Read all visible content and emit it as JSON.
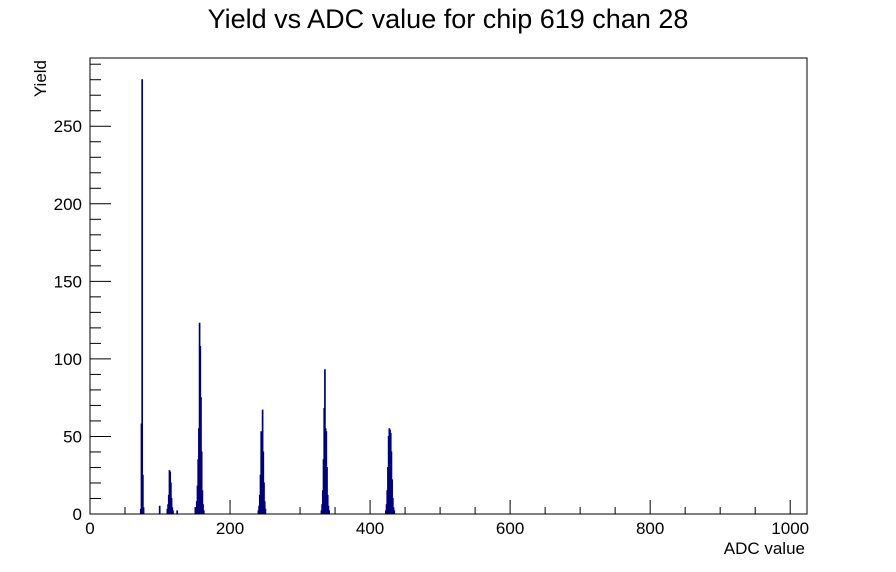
{
  "chart_data": {
    "type": "bar",
    "title": "Yield vs ADC value for chip 619 chan 28",
    "xlabel": "ADC value",
    "ylabel": "Yield",
    "xlim": [
      0,
      1024
    ],
    "ylim": [
      0,
      294
    ],
    "x_major_ticks": [
      0,
      200,
      400,
      600,
      800,
      1000
    ],
    "y_major_ticks": [
      0,
      50,
      100,
      150,
      200,
      250
    ],
    "grid": false,
    "legend": "none",
    "line_color": "#00007f",
    "bins": [
      {
        "x": 72,
        "y": 3
      },
      {
        "x": 73,
        "y": 58
      },
      {
        "x": 74,
        "y": 280
      },
      {
        "x": 75,
        "y": 25
      },
      {
        "x": 76,
        "y": 4
      },
      {
        "x": 99,
        "y": 5
      },
      {
        "x": 110,
        "y": 3
      },
      {
        "x": 111,
        "y": 6
      },
      {
        "x": 112,
        "y": 12
      },
      {
        "x": 113,
        "y": 28
      },
      {
        "x": 114,
        "y": 27
      },
      {
        "x": 115,
        "y": 20
      },
      {
        "x": 116,
        "y": 10
      },
      {
        "x": 117,
        "y": 4
      },
      {
        "x": 118,
        "y": 2
      },
      {
        "x": 124,
        "y": 2
      },
      {
        "x": 150,
        "y": 2
      },
      {
        "x": 151,
        "y": 4
      },
      {
        "x": 152,
        "y": 8
      },
      {
        "x": 153,
        "y": 18
      },
      {
        "x": 154,
        "y": 35
      },
      {
        "x": 155,
        "y": 55
      },
      {
        "x": 156,
        "y": 123
      },
      {
        "x": 157,
        "y": 108
      },
      {
        "x": 158,
        "y": 75
      },
      {
        "x": 159,
        "y": 40
      },
      {
        "x": 160,
        "y": 15
      },
      {
        "x": 161,
        "y": 6
      },
      {
        "x": 162,
        "y": 2
      },
      {
        "x": 240,
        "y": 2
      },
      {
        "x": 241,
        "y": 5
      },
      {
        "x": 242,
        "y": 12
      },
      {
        "x": 243,
        "y": 25
      },
      {
        "x": 244,
        "y": 53
      },
      {
        "x": 245,
        "y": 45
      },
      {
        "x": 246,
        "y": 67
      },
      {
        "x": 247,
        "y": 40
      },
      {
        "x": 248,
        "y": 20
      },
      {
        "x": 249,
        "y": 8
      },
      {
        "x": 250,
        "y": 3
      },
      {
        "x": 330,
        "y": 2
      },
      {
        "x": 331,
        "y": 6
      },
      {
        "x": 332,
        "y": 15
      },
      {
        "x": 333,
        "y": 35
      },
      {
        "x": 334,
        "y": 68
      },
      {
        "x": 335,
        "y": 93
      },
      {
        "x": 336,
        "y": 55
      },
      {
        "x": 337,
        "y": 53
      },
      {
        "x": 338,
        "y": 30
      },
      {
        "x": 339,
        "y": 12
      },
      {
        "x": 340,
        "y": 5
      },
      {
        "x": 341,
        "y": 2
      },
      {
        "x": 422,
        "y": 2
      },
      {
        "x": 423,
        "y": 6
      },
      {
        "x": 424,
        "y": 15
      },
      {
        "x": 425,
        "y": 30
      },
      {
        "x": 426,
        "y": 50
      },
      {
        "x": 427,
        "y": 55
      },
      {
        "x": 428,
        "y": 54
      },
      {
        "x": 429,
        "y": 52
      },
      {
        "x": 430,
        "y": 40
      },
      {
        "x": 431,
        "y": 22
      },
      {
        "x": 432,
        "y": 10
      },
      {
        "x": 433,
        "y": 4
      },
      {
        "x": 434,
        "y": 2
      }
    ]
  }
}
